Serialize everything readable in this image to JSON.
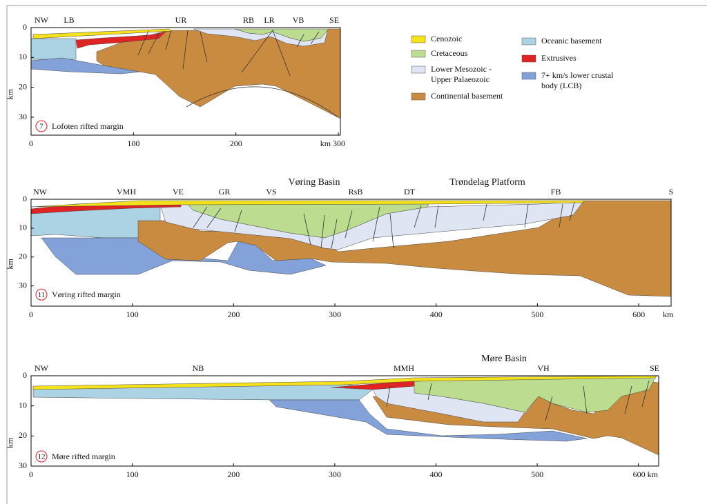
{
  "legend": [
    {
      "label": [
        "Cenozoic"
      ],
      "color": "#f5e21a"
    },
    {
      "label": [
        "Cretaceous"
      ],
      "color": "#bcdc8f"
    },
    {
      "label": [
        "Lower Mesozoic -",
        "Upper Palaeozoic"
      ],
      "color": "#dfe5f3"
    },
    {
      "label": [
        "Continental basement"
      ],
      "color": "#c98b40"
    },
    {
      "label": [
        "Oceanic basement"
      ],
      "color": "#acd3e3"
    },
    {
      "label": [
        "Extrusives"
      ],
      "color": "#e02424"
    },
    {
      "label": [
        "7+ km/s lower crustal",
        "body (LCB)"
      ],
      "color": "#83a2da"
    }
  ],
  "panels": [
    {
      "number": "7",
      "name": "Lofoten rifted margin",
      "y_label": "km",
      "locations": [
        "NW",
        "LB",
        "UR",
        "RB",
        "LR",
        "VB",
        "SE"
      ],
      "titles": [],
      "xlim": [
        0,
        302
      ],
      "ylim": [
        0,
        36
      ],
      "xticks": [
        0,
        100,
        200,
        {
          "value": 300,
          "label": "km 300"
        }
      ],
      "yticks": [
        0,
        10,
        20,
        30
      ]
    },
    {
      "number": "11",
      "name": "Vøring rifted margin",
      "y_label": "km",
      "x_unit": "km",
      "locations": [
        "NW",
        "VMH",
        "VE",
        "GR",
        "VS",
        "RsB",
        "DT",
        "FB",
        "S"
      ],
      "titles": [
        "Vøring Basin",
        "Trøndelag Platform"
      ],
      "xlim": [
        0,
        632
      ],
      "ylim": [
        0,
        37
      ],
      "xticks": [
        0,
        100,
        200,
        300,
        400,
        500,
        600
      ],
      "yticks": [
        0,
        10,
        20,
        30
      ]
    },
    {
      "number": "12",
      "name": "Møre rifted margin",
      "y_label": "km",
      "locations": [
        "NW",
        "NB",
        "MMH",
        "VH",
        "SE"
      ],
      "titles": [
        "Møre Basin"
      ],
      "xlim": [
        0,
        620
      ],
      "ylim": [
        0,
        30
      ],
      "xticks": [
        0,
        100,
        200,
        300,
        400,
        500,
        {
          "value": 600,
          "label": "600 km"
        }
      ],
      "yticks": [
        0,
        10,
        20,
        30
      ]
    }
  ]
}
